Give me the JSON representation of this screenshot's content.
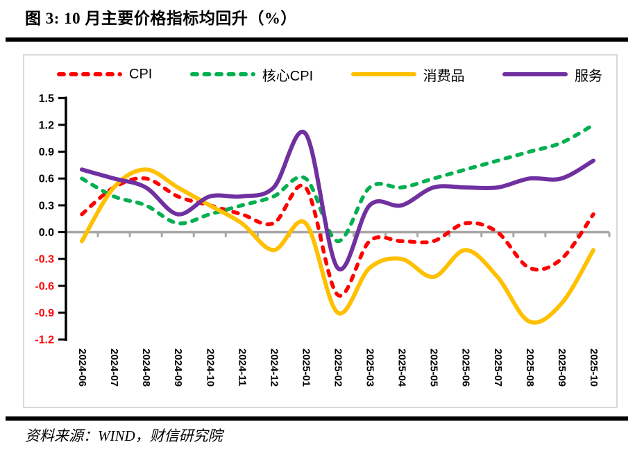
{
  "title": "图 3: 10 月主要价格指标均回升（%）",
  "source": "资料来源：WIND，财信研究院",
  "colors": {
    "axis": "#000000",
    "zero_line": "#a6a6a6",
    "negative_tick_label": "#ff0000",
    "positive_tick_label": "#000000",
    "panel_border": "#d9d9d9",
    "rule": "#000000"
  },
  "chart_data": {
    "type": "line",
    "title": "10 月主要价格指标均回升（%）",
    "xlabel": "",
    "ylabel": "",
    "x": [
      "2024-06",
      "2024-07",
      "2024-08",
      "2024-09",
      "2024-10",
      "2024-11",
      "2024-12",
      "2025-01",
      "2025-02",
      "2025-03",
      "2025-04",
      "2025-05",
      "2025-06",
      "2025-07",
      "2025-08",
      "2025-09",
      "2025-10"
    ],
    "ylim": [
      -1.2,
      1.5
    ],
    "ytick_step": 0.3,
    "grid": "zero-line-only",
    "legend_position": "top",
    "line_style": "smoothed",
    "series": [
      {
        "key": "cpi",
        "name": "CPI",
        "color": "#ff0000",
        "dash": true,
        "values": [
          0.2,
          0.5,
          0.6,
          0.4,
          0.3,
          0.2,
          0.1,
          0.5,
          -0.7,
          -0.1,
          -0.1,
          -0.1,
          0.1,
          0.0,
          -0.4,
          -0.3,
          0.2
        ]
      },
      {
        "key": "core-cpi",
        "name": "核心CPI",
        "color": "#00b050",
        "dash": true,
        "values": [
          0.6,
          0.4,
          0.3,
          0.1,
          0.2,
          0.3,
          0.4,
          0.6,
          -0.1,
          0.5,
          0.5,
          0.6,
          0.7,
          0.8,
          0.9,
          1.0,
          1.2
        ]
      },
      {
        "key": "consumer-goods",
        "name": "消费品",
        "color": "#ffc000",
        "dash": false,
        "values": [
          -0.1,
          0.5,
          0.7,
          0.5,
          0.3,
          0.1,
          -0.2,
          0.1,
          -0.9,
          -0.4,
          -0.3,
          -0.5,
          -0.2,
          -0.5,
          -1.0,
          -0.8,
          -0.2
        ]
      },
      {
        "key": "services",
        "name": "服务",
        "color": "#7030a0",
        "dash": false,
        "values": [
          0.7,
          0.6,
          0.5,
          0.2,
          0.4,
          0.4,
          0.5,
          1.1,
          -0.4,
          0.3,
          0.3,
          0.5,
          0.5,
          0.5,
          0.6,
          0.6,
          0.8
        ]
      }
    ]
  }
}
